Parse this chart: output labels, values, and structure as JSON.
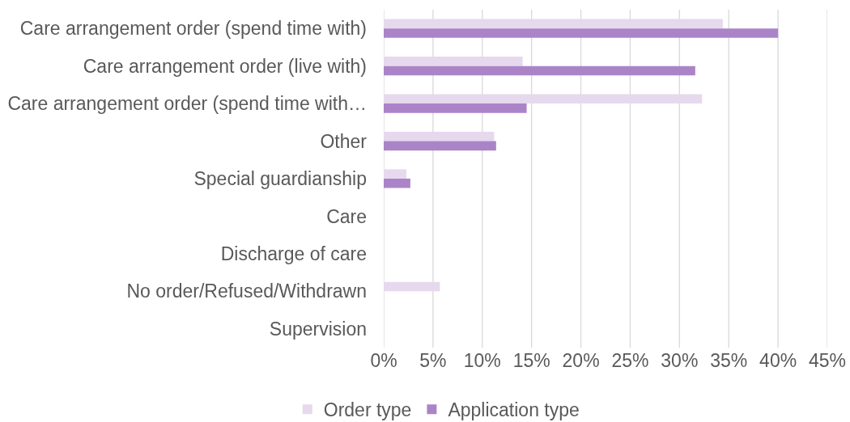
{
  "chart_data": {
    "type": "bar",
    "orientation": "horizontal",
    "categories": [
      "Care arrangement order (spend time with)",
      "Care arrangement order (live with)",
      "Care arrangement order (spend time with…",
      "Other",
      "Special guardianship",
      "Care",
      "Discharge of care",
      "No order/Refused/Withdrawn",
      "Supervision"
    ],
    "series": [
      {
        "name": "Order type",
        "color": "#e6d9ee",
        "values": [
          34.4,
          14.1,
          32.3,
          11.2,
          2.3,
          0,
          0,
          5.7,
          0
        ]
      },
      {
        "name": "Application type",
        "color": "#ab84c8",
        "values": [
          40.0,
          31.6,
          14.5,
          11.4,
          2.7,
          0,
          0,
          0,
          0
        ]
      }
    ],
    "xlim": [
      0,
      45
    ],
    "xticks": [
      {
        "value": 0,
        "label": "0%"
      },
      {
        "value": 5,
        "label": "5%"
      },
      {
        "value": 10,
        "label": "10%"
      },
      {
        "value": 15,
        "label": "15%"
      },
      {
        "value": 20,
        "label": "20%"
      },
      {
        "value": 25,
        "label": "25%"
      },
      {
        "value": 30,
        "label": "30%"
      },
      {
        "value": 35,
        "label": "35%"
      },
      {
        "value": 40,
        "label": "40%"
      },
      {
        "value": 45,
        "label": "45%"
      }
    ],
    "grid": "x",
    "legend": "bottom"
  }
}
